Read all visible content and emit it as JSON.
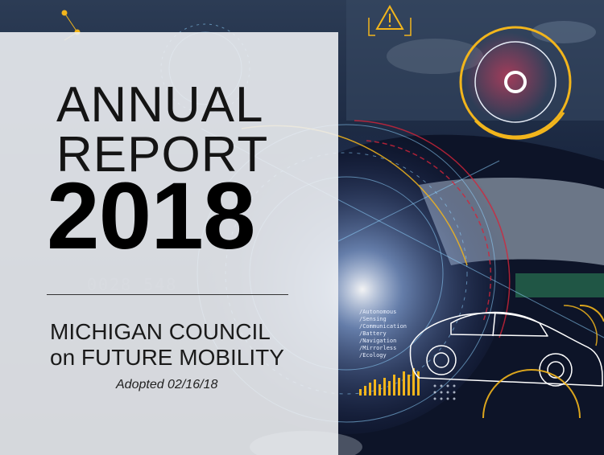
{
  "cover": {
    "title_line1": "ANNUAL",
    "title_line2": "REPORT",
    "year": "2018",
    "org_line1": "MICHIGAN COUNCIL",
    "org_line2": "on FUTURE MOBILITY",
    "adopted": "Adopted 02/16/18"
  },
  "hud": {
    "items": [
      "/Autonomous",
      "/Sensing",
      "/Communication",
      "/Battery",
      "/Navigation",
      "/Mirrorless",
      "/Ecology"
    ]
  },
  "colors": {
    "accent_yellow": "#f2b51c",
    "accent_red": "#d5243a",
    "hud_cyan": "#8fd3ff",
    "panel": "#eceef2"
  },
  "icons": [
    "warning-triangle-icon",
    "target-reticle-icon",
    "car-wireframe-icon"
  ]
}
